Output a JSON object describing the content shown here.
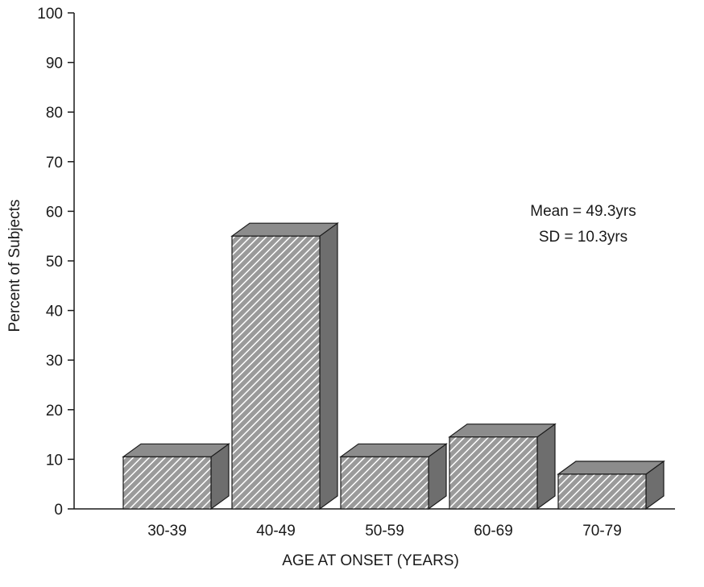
{
  "chart_data": {
    "type": "bar",
    "categories": [
      "30-39",
      "40-49",
      "50-59",
      "60-69",
      "70-79"
    ],
    "values": [
      10.5,
      55,
      10.5,
      14.5,
      7
    ],
    "xlabel": "AGE AT ONSET (YEARS)",
    "ylabel": "Percent of Subjects",
    "ylim": [
      0,
      100
    ],
    "yticks": [
      0,
      10,
      20,
      30,
      40,
      50,
      60,
      70,
      80,
      90,
      100
    ],
    "grid": false,
    "style": "3d-hatched",
    "colors": {
      "bar_fill": "#9a9a9a",
      "hatch": "#ffffff",
      "side": "#6e6e6e",
      "top": "#8c8c8c",
      "outline": "#1a1a1a"
    },
    "annotations": [
      "Mean = 49.3yrs",
      "SD = 10.3yrs"
    ]
  }
}
